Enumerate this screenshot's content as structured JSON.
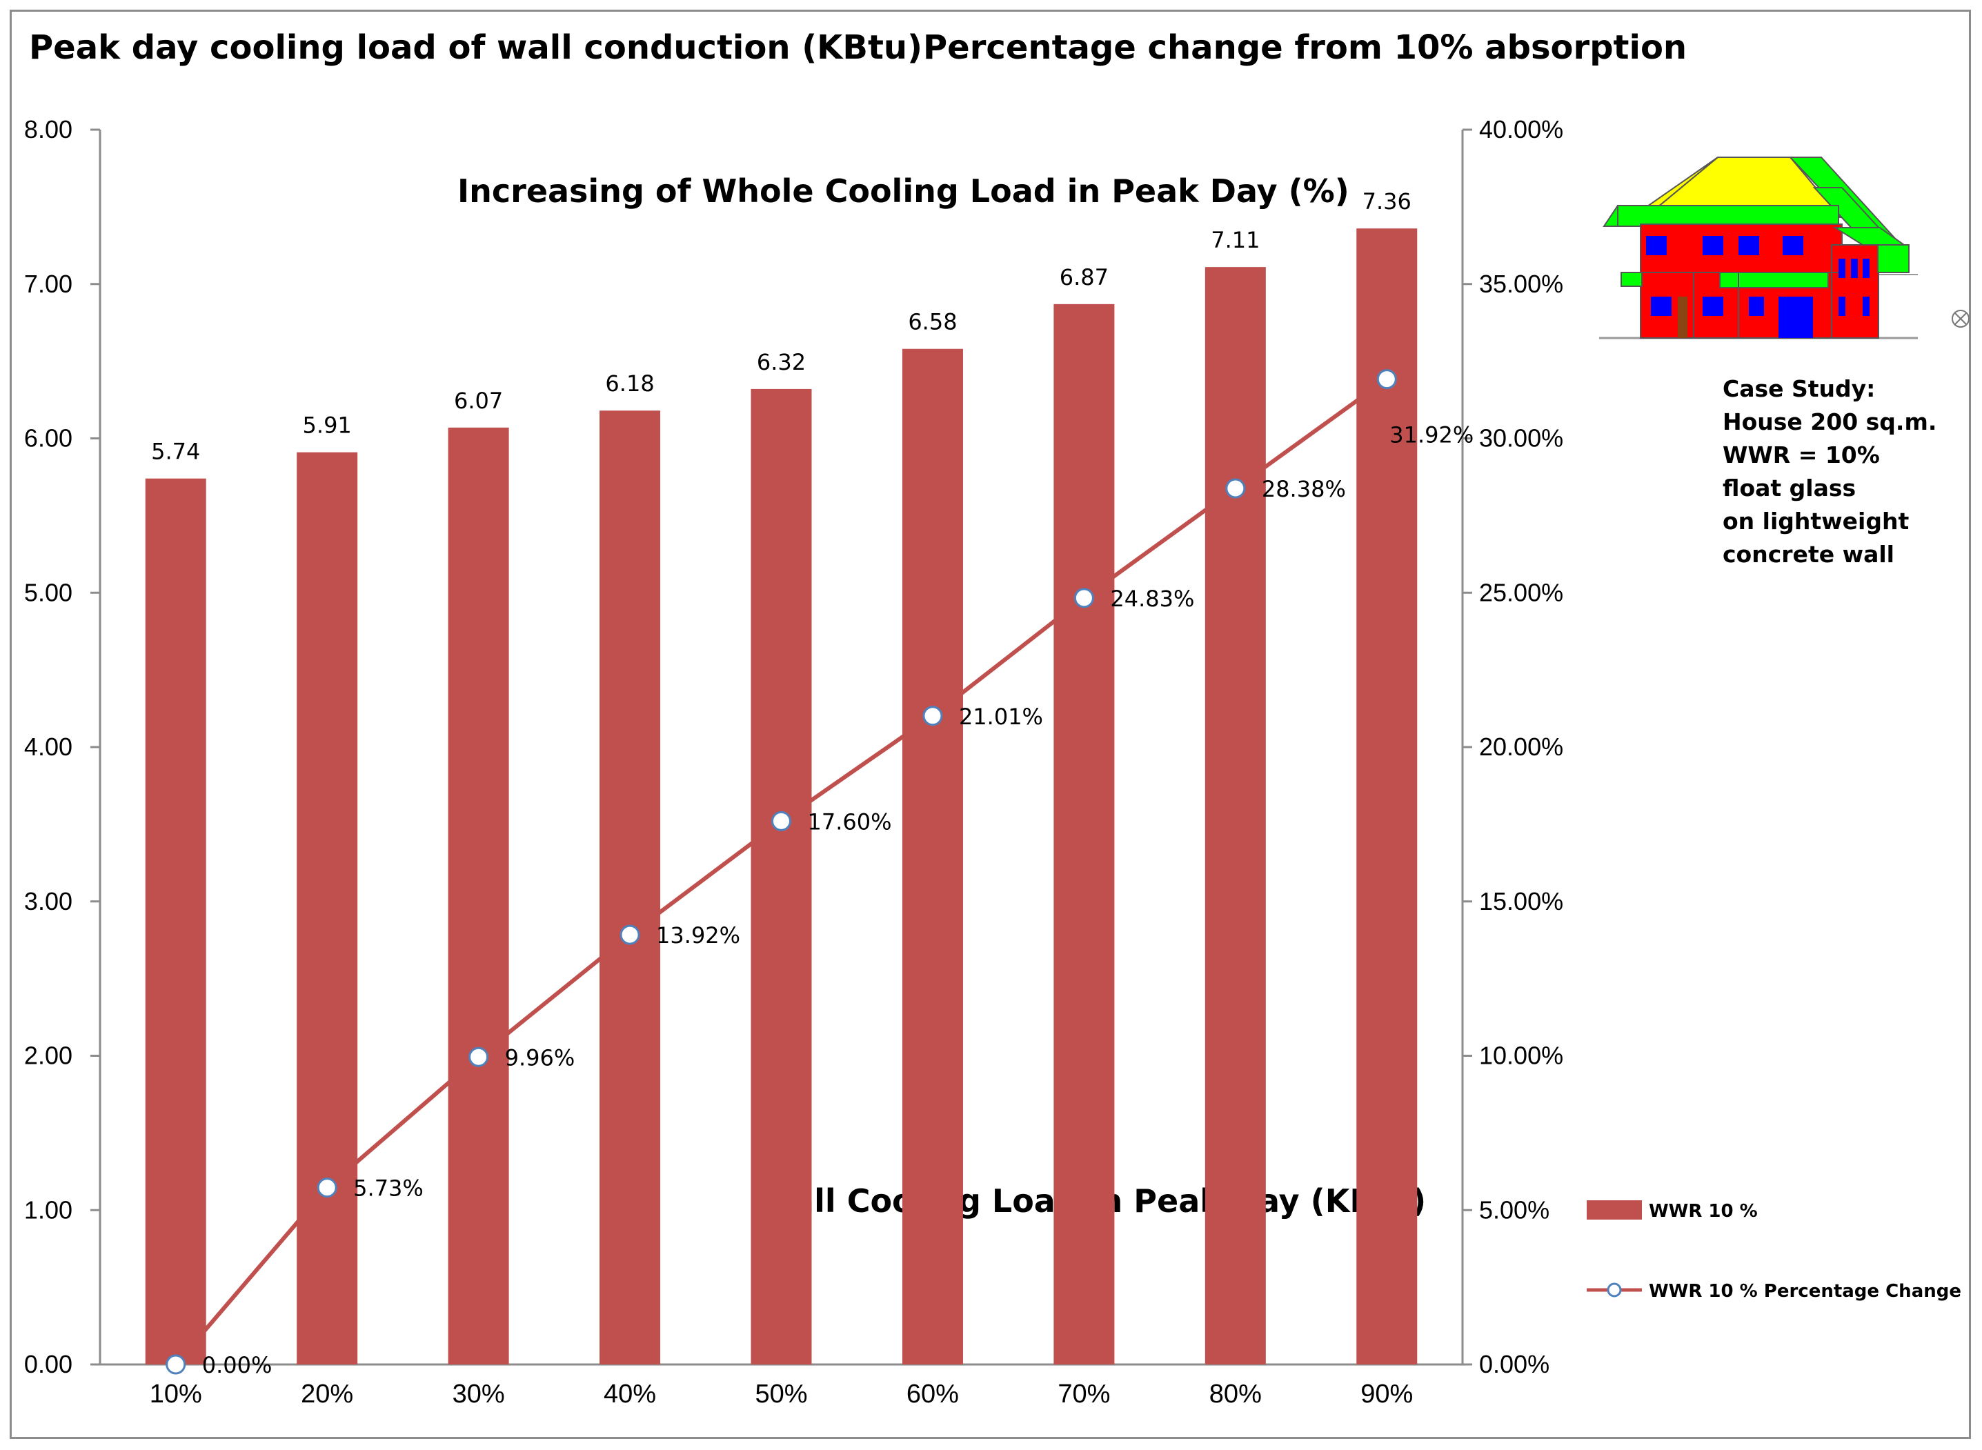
{
  "chart_data": {
    "type": "bar+line",
    "title_left": "Peak day cooling load of wall conduction (KBtu)",
    "title_right": "Percentage change from 10% absorption",
    "annotation_line": "Increasing of Whole Cooling Load in Peak Day (%)",
    "annotation_bar": "Wall Cooling Load in Peak Day (KBtu)",
    "categories": [
      "10%",
      "20%",
      "30%",
      "40%",
      "50%",
      "60%",
      "70%",
      "80%",
      "90%"
    ],
    "series": [
      {
        "name": "WWR 10 %",
        "type": "bar",
        "axis": "left",
        "color": "#c0504d",
        "values": [
          5.74,
          5.91,
          6.07,
          6.18,
          6.32,
          6.58,
          6.87,
          7.11,
          7.36
        ],
        "labels": [
          "5.74",
          "5.91",
          "6.07",
          "6.18",
          "6.32",
          "6.58",
          "6.87",
          "7.11",
          "7.36"
        ]
      },
      {
        "name": "WWR 10 % Percentage Change",
        "type": "line",
        "axis": "right",
        "color": "#c0504d",
        "values": [
          0.0,
          5.73,
          9.96,
          13.92,
          17.6,
          21.01,
          24.83,
          28.38,
          31.92
        ],
        "labels": [
          "0.00%",
          "5.73%",
          "9.96%",
          "13.92%",
          "17.60%",
          "21.01%",
          "24.83%",
          "28.38%",
          "31.92%"
        ]
      }
    ],
    "y_left": {
      "range": [
        0,
        8
      ],
      "ticks": [
        "0.00",
        "1.00",
        "2.00",
        "3.00",
        "4.00",
        "5.00",
        "6.00",
        "7.00",
        "8.00"
      ]
    },
    "y_right": {
      "range": [
        0,
        40
      ],
      "ticks": [
        "0.00%",
        "5.00%",
        "10.00%",
        "15.00%",
        "20.00%",
        "25.00%",
        "30.00%",
        "35.00%",
        "40.00%"
      ]
    },
    "grid": false,
    "legend_position": "right",
    "case_study": [
      "Case Study:",
      "House 200 sq.m.",
      "WWR = 10%",
      "float glass",
      "on lightweight",
      "concrete wall"
    ]
  }
}
